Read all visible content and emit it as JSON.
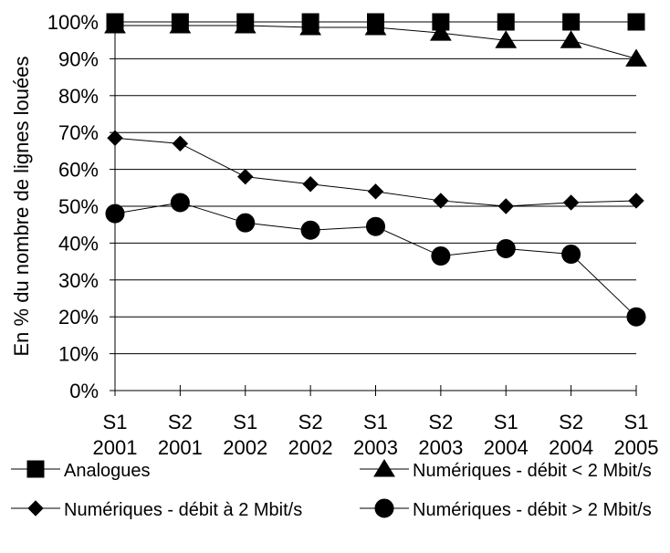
{
  "chart_data": {
    "type": "line",
    "title": "",
    "xlabel": "",
    "ylabel": "En % du nombre de lignes louées",
    "categories": [
      [
        "S1",
        "2001"
      ],
      [
        "S2",
        "2001"
      ],
      [
        "S1",
        "2002"
      ],
      [
        "S2",
        "2002"
      ],
      [
        "S1",
        "2003"
      ],
      [
        "S2",
        "2003"
      ],
      [
        "S1",
        "2004"
      ],
      [
        "S2",
        "2004"
      ],
      [
        "S1",
        "2005"
      ]
    ],
    "ylim": [
      0,
      100
    ],
    "ytick_values": [
      0,
      10,
      20,
      30,
      40,
      50,
      60,
      70,
      80,
      90,
      100
    ],
    "ytick_labels": [
      "0%",
      "10%",
      "20%",
      "30%",
      "40%",
      "50%",
      "60%",
      "70%",
      "80%",
      "90%",
      "100%"
    ],
    "grid": true,
    "legend_position": "bottom",
    "series": [
      {
        "name": "Analogues",
        "marker": "square",
        "color": "#000000",
        "values": [
          100,
          100,
          100,
          100,
          100,
          100,
          100,
          100,
          100
        ]
      },
      {
        "name": "Numériques - débit < 2 Mbit/s",
        "marker": "triangle",
        "color": "#000000",
        "values": [
          99,
          99,
          99,
          98.5,
          98.5,
          97,
          95,
          95,
          90
        ]
      },
      {
        "name": "Numériques - débit à 2 Mbit/s",
        "marker": "diamond",
        "color": "#000000",
        "values": [
          68.5,
          67,
          58,
          56,
          54,
          51.5,
          50,
          51,
          51.5
        ]
      },
      {
        "name": "Numériques - débit > 2 Mbit/s",
        "marker": "circle",
        "color": "#000000",
        "values": [
          48,
          51,
          45.5,
          43.5,
          44.5,
          36.5,
          38.5,
          37,
          20
        ]
      }
    ]
  }
}
